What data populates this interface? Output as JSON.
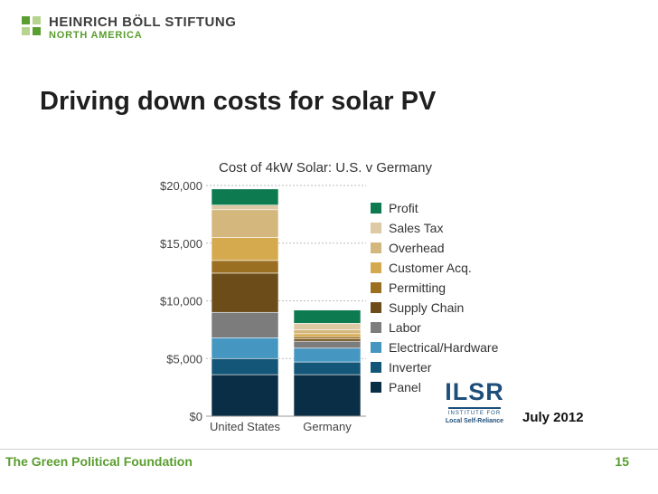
{
  "header": {
    "org_name": "HEINRICH BÖLL STIFTUNG",
    "org_region": "NORTH AMERICA"
  },
  "slide": {
    "title": "Driving down costs for solar PV"
  },
  "badge": {
    "mark": "ILSR",
    "line1": "INSTITUTE FOR",
    "line2": "Local Self-Reliance"
  },
  "date_label": "July 2012",
  "footer": {
    "left": "The Green Political Foundation",
    "page": "15"
  },
  "colors": {
    "Profit": "#0e7a50",
    "Sales Tax": "#ddc9a4",
    "Overhead": "#d4b77c",
    "Customer Acq.": "#d5a94e",
    "Permitting": "#9a6f22",
    "Supply Chain": "#6c4d19",
    "Labor": "#7c7c7c",
    "Electrical/Hardware": "#4596c1",
    "Inverter": "#145678",
    "Panel": "#0a2e45"
  },
  "chart_data": {
    "type": "bar",
    "stacked": true,
    "title": "Cost of 4kW Solar: U.S. v Germany",
    "categories": [
      "United States",
      "Germany"
    ],
    "y_ticks": [
      {
        "value": 0,
        "label": "$0"
      },
      {
        "value": 5000,
        "label": "$5,000"
      },
      {
        "value": 10000,
        "label": "$10,000"
      },
      {
        "value": 15000,
        "label": "$15,000"
      },
      {
        "value": 20000,
        "label": "$20,000"
      }
    ],
    "ylim": [
      0,
      20000
    ],
    "grid": true,
    "legend_position": "right",
    "series": [
      {
        "name": "Panel",
        "values": [
          3600,
          3600
        ]
      },
      {
        "name": "Inverter",
        "values": [
          1400,
          1100
        ]
      },
      {
        "name": "Electrical/Hardware",
        "values": [
          1800,
          1200
        ]
      },
      {
        "name": "Labor",
        "values": [
          2200,
          600
        ]
      },
      {
        "name": "Supply Chain",
        "values": [
          3400,
          200
        ]
      },
      {
        "name": "Permitting",
        "values": [
          1100,
          200
        ]
      },
      {
        "name": "Customer Acq.",
        "values": [
          2000,
          250
        ]
      },
      {
        "name": "Overhead",
        "values": [
          2400,
          350
        ]
      },
      {
        "name": "Sales Tax",
        "values": [
          400,
          550
        ]
      },
      {
        "name": "Profit",
        "values": [
          1400,
          1150
        ]
      }
    ]
  }
}
